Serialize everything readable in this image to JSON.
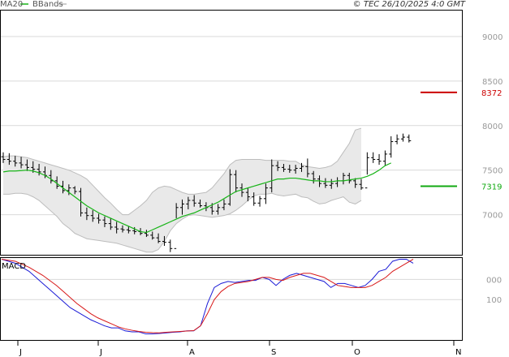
{
  "header": {
    "legend_ma": "MA20",
    "legend_bb": "BBands",
    "copyright": "© TEC 26/10/2025 4:0 GMT"
  },
  "colors": {
    "price": "#000000",
    "ma20": "#18b418",
    "bbands": "#bdbdbd",
    "bbands_fill": "#e9e9e9",
    "macd_line": "#1a1ad6",
    "signal_line": "#d81818",
    "resistance": "#cc0000",
    "support": "#11aa11"
  },
  "chart_data": [
    {
      "type": "line",
      "name": "price-panel",
      "ylim": [
        6550,
        9300
      ],
      "yticks": [
        7000,
        7500,
        8000,
        8500,
        9000
      ],
      "ytick_labels": [
        "7000",
        "7500",
        "8000",
        "8500",
        "9000"
      ],
      "x_months": [
        "J",
        "J",
        "A",
        "S",
        "O",
        "N"
      ],
      "ohlc_bars": [
        [
          7650,
          7580,
          7700,
          7620
        ],
        [
          7620,
          7560,
          7690,
          7600
        ],
        [
          7600,
          7540,
          7660,
          7580
        ],
        [
          7580,
          7520,
          7650,
          7560
        ],
        [
          7560,
          7490,
          7620,
          7530
        ],
        [
          7530,
          7470,
          7600,
          7510
        ],
        [
          7510,
          7440,
          7570,
          7480
        ],
        [
          7480,
          7410,
          7540,
          7440
        ],
        [
          7440,
          7350,
          7500,
          7380
        ],
        [
          7380,
          7290,
          7430,
          7320
        ],
        [
          7320,
          7240,
          7380,
          7270
        ],
        [
          7270,
          7220,
          7340,
          7300
        ],
        [
          7300,
          7230,
          7320,
          7260
        ],
        [
          7260,
          6980,
          7300,
          7020
        ],
        [
          7020,
          6940,
          7080,
          6990
        ],
        [
          6990,
          6920,
          7050,
          6960
        ],
        [
          6960,
          6900,
          7010,
          6940
        ],
        [
          6940,
          6860,
          6980,
          6900
        ],
        [
          6900,
          6830,
          6960,
          6860
        ],
        [
          6860,
          6790,
          6920,
          6840
        ],
        [
          6840,
          6800,
          6880,
          6830
        ],
        [
          6830,
          6790,
          6870,
          6820
        ],
        [
          6820,
          6780,
          6860,
          6810
        ],
        [
          6810,
          6770,
          6850,
          6790
        ],
        [
          6790,
          6750,
          6830,
          6770
        ],
        [
          6770,
          6720,
          6810,
          6740
        ],
        [
          6740,
          6680,
          6790,
          6700
        ],
        [
          6700,
          6650,
          6760,
          6690
        ],
        [
          6690,
          6580,
          6720,
          6620
        ],
        [
          6620,
          6960,
          7130,
          7080
        ],
        [
          7080,
          7000,
          7170,
          7120
        ],
        [
          7120,
          7060,
          7200,
          7160
        ],
        [
          7160,
          7090,
          7220,
          7130
        ],
        [
          7130,
          7080,
          7170,
          7100
        ],
        [
          7100,
          7040,
          7140,
          7080
        ],
        [
          7080,
          7000,
          7130,
          7040
        ],
        [
          7040,
          7000,
          7120,
          7080
        ],
        [
          7080,
          7050,
          7170,
          7120
        ],
        [
          7120,
          7100,
          7510,
          7450
        ],
        [
          7450,
          7250,
          7500,
          7300
        ],
        [
          7300,
          7200,
          7350,
          7250
        ],
        [
          7250,
          7150,
          7300,
          7200
        ],
        [
          7200,
          7100,
          7250,
          7130
        ],
        [
          7130,
          7090,
          7210,
          7180
        ],
        [
          7180,
          7120,
          7350,
          7300
        ],
        [
          7300,
          7250,
          7620,
          7550
        ],
        [
          7550,
          7490,
          7600,
          7530
        ],
        [
          7530,
          7480,
          7570,
          7510
        ],
        [
          7510,
          7470,
          7560,
          7500
        ],
        [
          7500,
          7460,
          7560,
          7520
        ],
        [
          7520,
          7480,
          7580,
          7540
        ],
        [
          7540,
          7420,
          7630,
          7460
        ],
        [
          7460,
          7350,
          7490,
          7400
        ],
        [
          7400,
          7310,
          7440,
          7350
        ],
        [
          7350,
          7300,
          7410,
          7330
        ],
        [
          7330,
          7290,
          7400,
          7350
        ],
        [
          7350,
          7310,
          7420,
          7380
        ],
        [
          7380,
          7340,
          7470,
          7440
        ],
        [
          7440,
          7350,
          7470,
          7380
        ],
        [
          7380,
          7300,
          7410,
          7340
        ],
        [
          7340,
          7280,
          7400,
          7300
        ],
        [
          7300,
          7450,
          7700,
          7640
        ],
        [
          7640,
          7580,
          7700,
          7620
        ],
        [
          7620,
          7560,
          7680,
          7600
        ],
        [
          7600,
          7550,
          7720,
          7680
        ],
        [
          7680,
          7640,
          7880,
          7820
        ],
        [
          7820,
          7790,
          7900,
          7850
        ],
        [
          7850,
          7820,
          7910,
          7870
        ],
        [
          7870,
          7810,
          7900,
          7830
        ]
      ],
      "ma20": [
        7480,
        7490,
        7490,
        7495,
        7500,
        7490,
        7470,
        7440,
        7400,
        7350,
        7300,
        7250,
        7200,
        7150,
        7100,
        7060,
        7020,
        6990,
        6960,
        6930,
        6900,
        6870,
        6840,
        6810,
        6800,
        6830,
        6860,
        6890,
        6920,
        6950,
        6980,
        7000,
        7020,
        7050,
        7080,
        7110,
        7140,
        7180,
        7220,
        7260,
        7280,
        7300,
        7320,
        7340,
        7360,
        7380,
        7400,
        7400,
        7410,
        7410,
        7400,
        7390,
        7380,
        7380,
        7370,
        7370,
        7380,
        7380,
        7390,
        7400,
        7410,
        7430,
        7460,
        7500,
        7550,
        7580
      ],
      "bb_upper": [
        7650,
        7660,
        7660,
        7650,
        7640,
        7620,
        7600,
        7580,
        7560,
        7540,
        7520,
        7500,
        7470,
        7440,
        7400,
        7330,
        7260,
        7190,
        7130,
        7060,
        7000,
        7000,
        7050,
        7100,
        7160,
        7250,
        7300,
        7320,
        7310,
        7280,
        7250,
        7230,
        7230,
        7240,
        7250,
        7300,
        7380,
        7460,
        7560,
        7610,
        7620,
        7620,
        7620,
        7620,
        7610,
        7610,
        7610,
        7610,
        7600,
        7600,
        7560,
        7540,
        7530,
        7520,
        7530,
        7550,
        7600,
        7700,
        7800,
        7950,
        7970
      ],
      "bb_lower": [
        7230,
        7230,
        7240,
        7240,
        7230,
        7200,
        7160,
        7100,
        7040,
        6980,
        6900,
        6850,
        6790,
        6760,
        6730,
        6720,
        6710,
        6700,
        6690,
        6680,
        6660,
        6640,
        6620,
        6600,
        6580,
        6580,
        6610,
        6700,
        6820,
        6900,
        6950,
        6990,
        7000,
        6990,
        6980,
        6970,
        6980,
        6990,
        7010,
        7050,
        7100,
        7160,
        7210,
        7230,
        7230,
        7240,
        7220,
        7210,
        7220,
        7230,
        7200,
        7190,
        7150,
        7120,
        7130,
        7160,
        7180,
        7200,
        7140,
        7120,
        7160
      ],
      "levels": [
        {
          "label": "8372",
          "value": 8372
        },
        {
          "label": "7319",
          "value": 7319
        }
      ]
    },
    {
      "type": "line",
      "name": "macd-panel",
      "title": "MACD",
      "ylim": [
        -300,
        110
      ],
      "yticks": [
        -100,
        0
      ],
      "ytick_labels": [
        "100",
        "000"
      ],
      "series": [
        {
          "values": [
            100,
            90,
            80,
            60,
            40,
            10,
            -20,
            -50,
            -80,
            -110,
            -140,
            -160,
            -180,
            -200,
            -215,
            -230,
            -240,
            -240,
            -255,
            -260,
            -260,
            -270,
            -270,
            -268,
            -265,
            -262,
            -260,
            -255,
            -255,
            -230,
            -120,
            -40,
            -20,
            -10,
            -15,
            -10,
            -5,
            -5,
            10,
            0,
            -30,
            0,
            20,
            30,
            20,
            10,
            0,
            -10,
            -40,
            -20,
            -20,
            -30,
            -40,
            -30,
            0,
            40,
            50,
            90,
            100,
            100,
            80
          ]
        },
        {
          "values": [
            100,
            95,
            90,
            75,
            60,
            40,
            20,
            -5,
            -30,
            -60,
            -90,
            -120,
            -145,
            -170,
            -190,
            -205,
            -220,
            -235,
            -245,
            -252,
            -258,
            -262,
            -264,
            -265,
            -262,
            -260,
            -258,
            -256,
            -254,
            -230,
            -170,
            -100,
            -60,
            -35,
            -20,
            -15,
            -10,
            0,
            10,
            10,
            0,
            -5,
            10,
            20,
            30,
            30,
            20,
            10,
            -10,
            -30,
            -35,
            -40,
            -40,
            -40,
            -30,
            -10,
            10,
            40,
            60,
            80,
            100
          ]
        }
      ]
    }
  ]
}
